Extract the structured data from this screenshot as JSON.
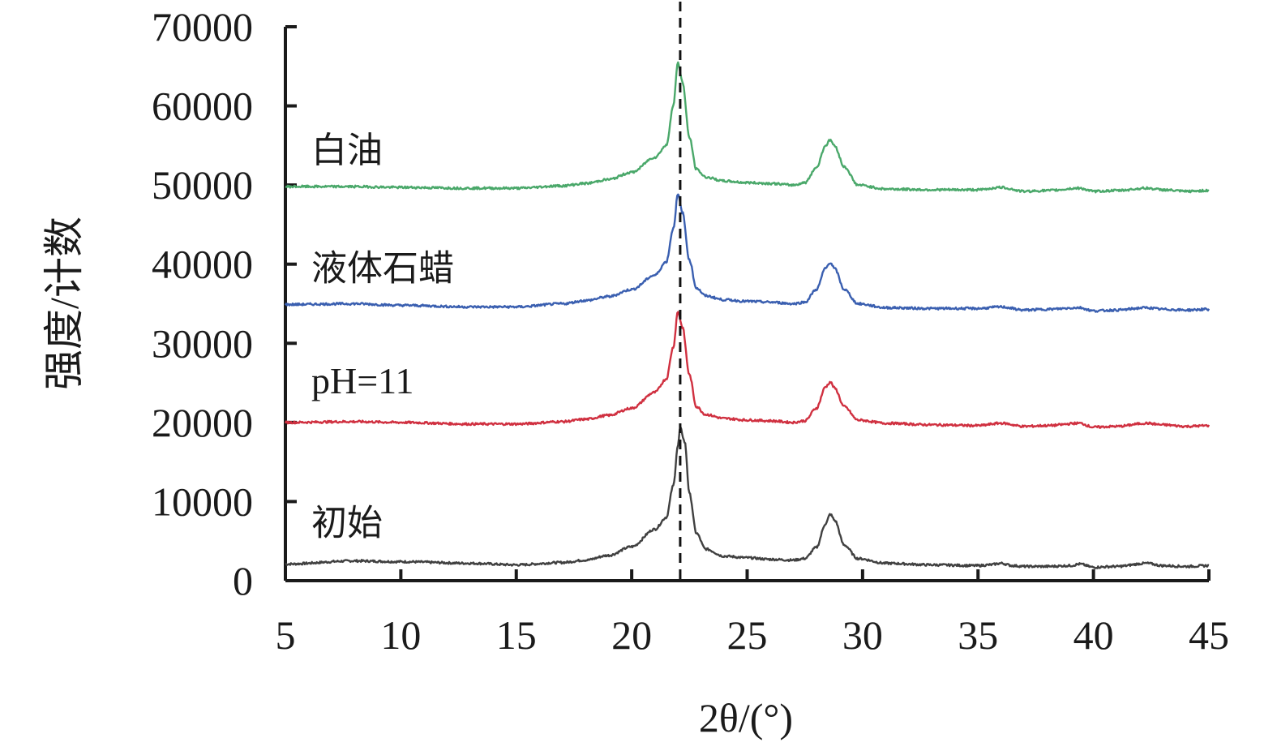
{
  "chart_data": {
    "type": "line",
    "xlabel": "2θ/(°)",
    "ylabel": "强度/计数",
    "xlim": [
      5,
      45
    ],
    "ylim": [
      0,
      70000
    ],
    "xticks": [
      "5",
      "10",
      "15",
      "20",
      "25",
      "30",
      "35",
      "40",
      "45"
    ],
    "yticks": [
      "0",
      "10000",
      "20000",
      "30000",
      "40000",
      "50000",
      "60000",
      "70000"
    ],
    "reference_line": {
      "x": 22.1,
      "style": "dashed"
    },
    "grid": false,
    "legend": "inline labels to the left of each curve",
    "series": [
      {
        "name": "初始",
        "color": "#404040",
        "points": [
          [
            5,
            2100
          ],
          [
            8,
            2500
          ],
          [
            10,
            2400
          ],
          [
            13,
            2200
          ],
          [
            15,
            2000
          ],
          [
            17,
            2300
          ],
          [
            18,
            2600
          ],
          [
            19,
            3200
          ],
          [
            20,
            4300
          ],
          [
            21,
            6500
          ],
          [
            21.5,
            8000
          ],
          [
            21.8,
            12000
          ],
          [
            22.0,
            17000
          ],
          [
            22.1,
            19300
          ],
          [
            22.3,
            17500
          ],
          [
            22.5,
            11000
          ],
          [
            22.8,
            6000
          ],
          [
            23.2,
            4000
          ],
          [
            24,
            3100
          ],
          [
            25,
            2900
          ],
          [
            26,
            2700
          ],
          [
            27,
            2600
          ],
          [
            27.5,
            2800
          ],
          [
            28,
            4200
          ],
          [
            28.4,
            7200
          ],
          [
            28.6,
            8400
          ],
          [
            28.8,
            7600
          ],
          [
            29.2,
            4500
          ],
          [
            29.8,
            2800
          ],
          [
            31,
            2200
          ],
          [
            33,
            2000
          ],
          [
            35,
            1900
          ],
          [
            35.5,
            2000
          ],
          [
            36,
            2200
          ],
          [
            36.5,
            1900
          ],
          [
            37,
            1800
          ],
          [
            38,
            1800
          ],
          [
            39,
            1900
          ],
          [
            39.4,
            2100
          ],
          [
            40,
            1700
          ],
          [
            41,
            1800
          ],
          [
            42.3,
            2200
          ],
          [
            43,
            1900
          ],
          [
            44,
            1800
          ],
          [
            45,
            1900
          ]
        ]
      },
      {
        "name": "pH=11",
        "color": "#d03040",
        "points": [
          [
            5,
            20000
          ],
          [
            8,
            20100
          ],
          [
            10,
            20000
          ],
          [
            13,
            19800
          ],
          [
            15,
            19800
          ],
          [
            17,
            20100
          ],
          [
            18,
            20400
          ],
          [
            19,
            20900
          ],
          [
            20,
            21800
          ],
          [
            21,
            23800
          ],
          [
            21.5,
            25500
          ],
          [
            21.8,
            29500
          ],
          [
            22.0,
            34000
          ],
          [
            22.2,
            32000
          ],
          [
            22.5,
            26000
          ],
          [
            22.8,
            22000
          ],
          [
            23.2,
            21000
          ],
          [
            24,
            20500
          ],
          [
            25,
            20300
          ],
          [
            26,
            20200
          ],
          [
            27,
            20000
          ],
          [
            27.5,
            20200
          ],
          [
            28,
            21800
          ],
          [
            28.4,
            24500
          ],
          [
            28.6,
            25100
          ],
          [
            28.8,
            24300
          ],
          [
            29.2,
            22000
          ],
          [
            29.8,
            20300
          ],
          [
            31,
            19900
          ],
          [
            33,
            19700
          ],
          [
            35,
            19600
          ],
          [
            36,
            19900
          ],
          [
            37,
            19500
          ],
          [
            38,
            19600
          ],
          [
            39.4,
            19900
          ],
          [
            40,
            19400
          ],
          [
            41,
            19500
          ],
          [
            42.3,
            19900
          ],
          [
            43,
            19700
          ],
          [
            44,
            19500
          ],
          [
            45,
            19600
          ]
        ]
      },
      {
        "name": "液体石蜡",
        "color": "#3a5fb0",
        "points": [
          [
            5,
            34900
          ],
          [
            8,
            35000
          ],
          [
            10,
            34800
          ],
          [
            13,
            34600
          ],
          [
            15,
            34600
          ],
          [
            17,
            35000
          ],
          [
            18,
            35400
          ],
          [
            19,
            35900
          ],
          [
            20,
            36800
          ],
          [
            21,
            38600
          ],
          [
            21.5,
            40300
          ],
          [
            21.8,
            44500
          ],
          [
            22.0,
            48800
          ],
          [
            22.2,
            46500
          ],
          [
            22.5,
            40500
          ],
          [
            22.8,
            37000
          ],
          [
            23.2,
            36000
          ],
          [
            24,
            35500
          ],
          [
            25,
            35300
          ],
          [
            26,
            35200
          ],
          [
            27,
            35000
          ],
          [
            27.5,
            35200
          ],
          [
            28,
            36800
          ],
          [
            28.4,
            39500
          ],
          [
            28.6,
            40200
          ],
          [
            28.8,
            39400
          ],
          [
            29.2,
            36800
          ],
          [
            29.8,
            35000
          ],
          [
            31,
            34500
          ],
          [
            33,
            34400
          ],
          [
            35,
            34400
          ],
          [
            36,
            34600
          ],
          [
            37,
            34200
          ],
          [
            38,
            34300
          ],
          [
            39.4,
            34500
          ],
          [
            40,
            34100
          ],
          [
            41,
            34200
          ],
          [
            42.3,
            34500
          ],
          [
            43,
            34300
          ],
          [
            44,
            34200
          ],
          [
            45,
            34300
          ]
        ]
      },
      {
        "name": "白油",
        "color": "#4aa86a",
        "points": [
          [
            5,
            49800
          ],
          [
            8,
            49800
          ],
          [
            10,
            49700
          ],
          [
            13,
            49600
          ],
          [
            15,
            49600
          ],
          [
            17,
            49900
          ],
          [
            18,
            50200
          ],
          [
            19,
            50700
          ],
          [
            20,
            51600
          ],
          [
            21,
            53500
          ],
          [
            21.5,
            55000
          ],
          [
            21.8,
            60000
          ],
          [
            22.0,
            65500
          ],
          [
            22.2,
            63000
          ],
          [
            22.5,
            56000
          ],
          [
            22.8,
            52000
          ],
          [
            23.2,
            51000
          ],
          [
            24,
            50500
          ],
          [
            25,
            50300
          ],
          [
            26,
            50200
          ],
          [
            27,
            50000
          ],
          [
            27.5,
            50300
          ],
          [
            28,
            52200
          ],
          [
            28.4,
            55000
          ],
          [
            28.6,
            55700
          ],
          [
            28.8,
            54900
          ],
          [
            29.2,
            52300
          ],
          [
            29.8,
            50000
          ],
          [
            31,
            49500
          ],
          [
            33,
            49400
          ],
          [
            35,
            49400
          ],
          [
            36,
            49700
          ],
          [
            37,
            49200
          ],
          [
            38,
            49300
          ],
          [
            39.4,
            49600
          ],
          [
            40,
            49200
          ],
          [
            41,
            49300
          ],
          [
            42.3,
            49600
          ],
          [
            43,
            49400
          ],
          [
            44,
            49200
          ],
          [
            45,
            49300
          ]
        ]
      }
    ]
  }
}
